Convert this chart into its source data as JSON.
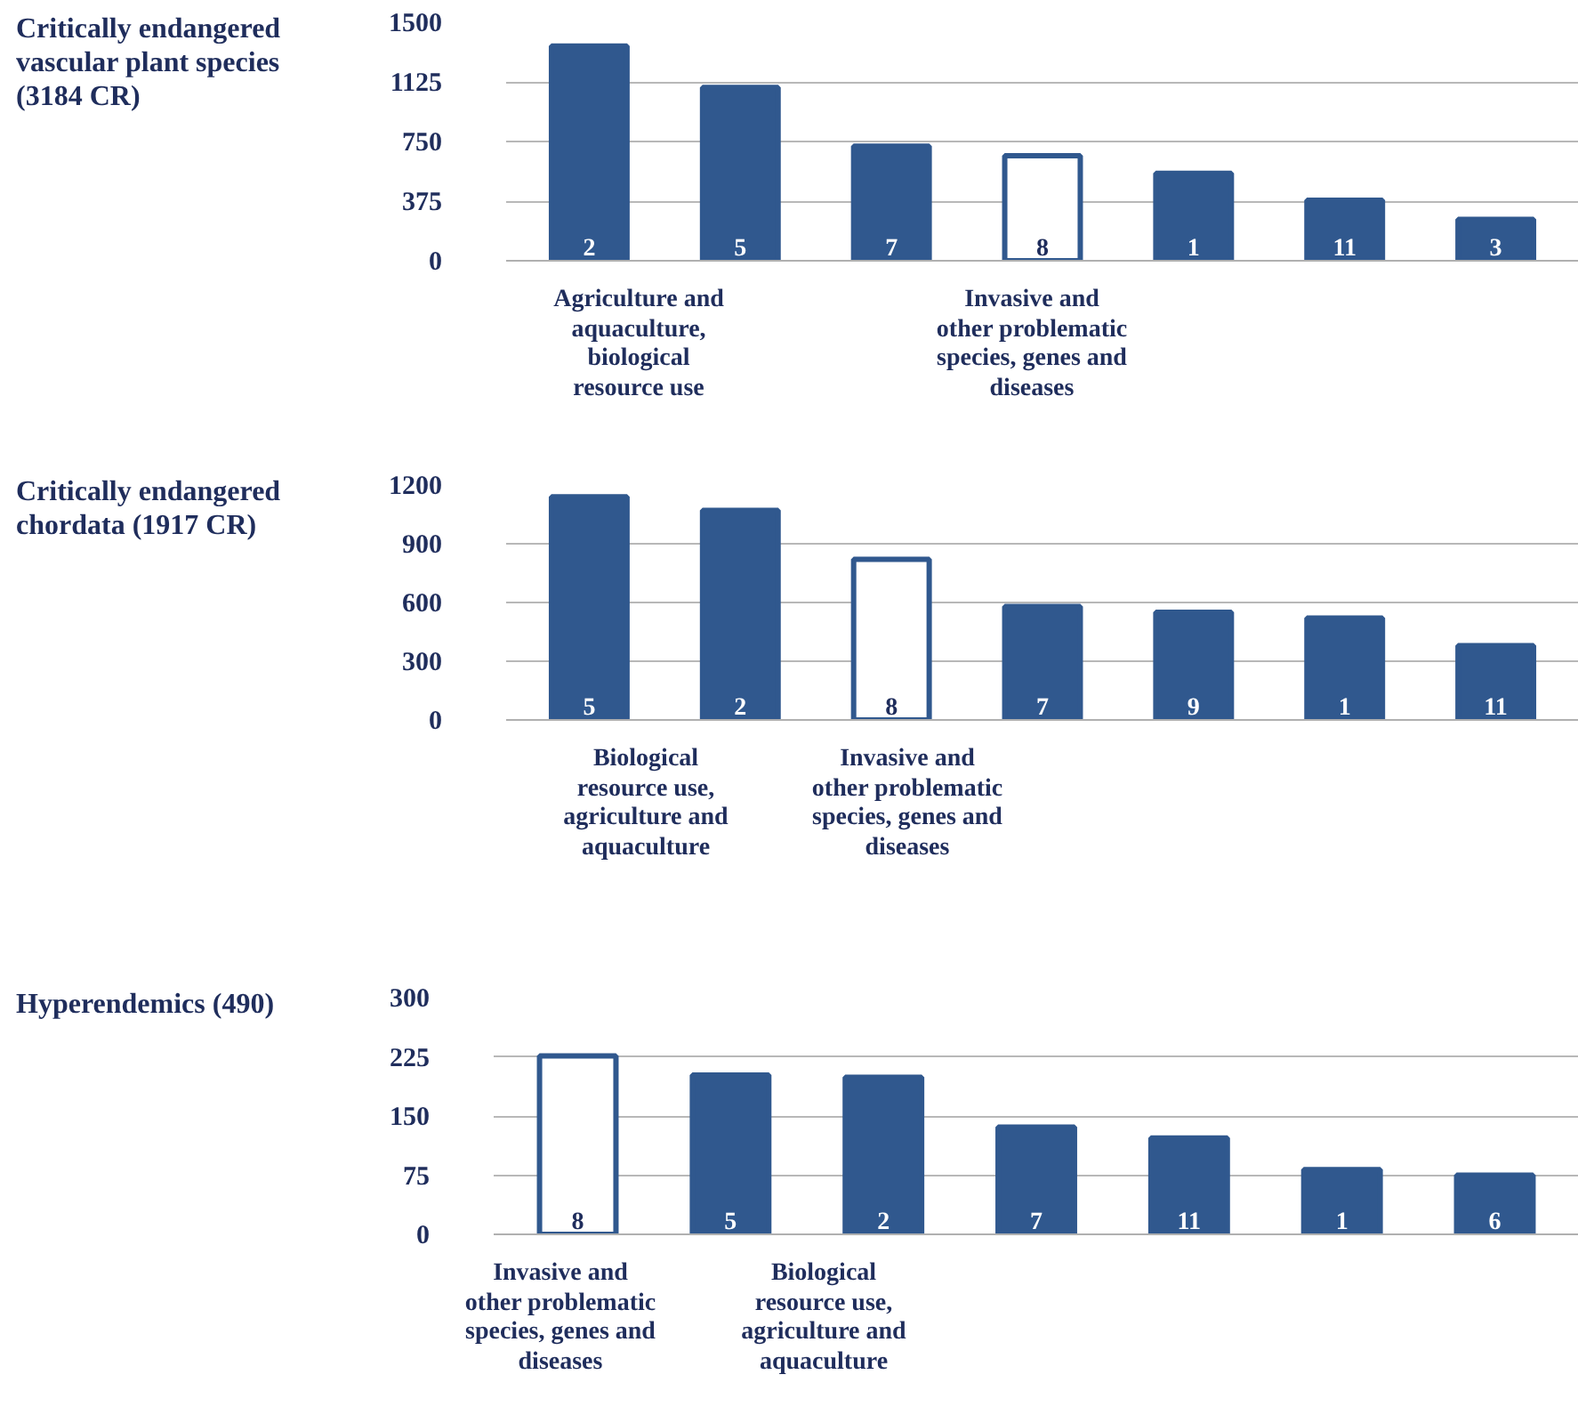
{
  "chart_data": [
    {
      "type": "bar",
      "title": "Critically endangered\nvascular plant species\n(3184 CR)",
      "categories": [
        "2",
        "5",
        "7",
        "8",
        "1",
        "11",
        "3"
      ],
      "values": [
        1350,
        1090,
        720,
        660,
        550,
        380,
        260
      ],
      "color": "#30588e",
      "colors": [
        "#30588e",
        "#30588e",
        "#30588e",
        "#ffffff",
        "#30588e",
        "#30588e",
        "#30588e"
      ],
      "ylim": [
        0,
        1500
      ],
      "yticks": [
        0,
        375,
        750,
        1125,
        1500
      ],
      "grid": "y",
      "annotations": [
        "Agriculture and\naquaculture,\nbiological\nresource use",
        "Invasive and\nother problematic\nspecies, genes and\ndiseases"
      ]
    },
    {
      "type": "bar",
      "title": "Critically endangered\nchordata (1917 CR)",
      "categories": [
        "5",
        "2",
        "8",
        "7",
        "9",
        "1",
        "11"
      ],
      "values": [
        1140,
        1070,
        820,
        580,
        550,
        520,
        380
      ],
      "color": "#30588e",
      "colors": [
        "#30588e",
        "#30588e",
        "#ffffff",
        "#30588e",
        "#30588e",
        "#30588e",
        "#30588e"
      ],
      "ylim": [
        0,
        1200
      ],
      "yticks": [
        0,
        300,
        600,
        900,
        1200
      ],
      "grid": "y",
      "annotations": [
        "Biological\nresource use,\nagriculture and\naquaculture",
        "Invasive and\nother problematic\nspecies, genes and\ndiseases"
      ]
    },
    {
      "type": "bar",
      "title": "Hyperendemics (490)",
      "categories": [
        "8",
        "5",
        "2",
        "7",
        "11",
        "1",
        "6"
      ],
      "values": [
        226,
        202,
        199,
        136,
        122,
        82,
        75
      ],
      "color": "#30588e",
      "colors": [
        "#ffffff",
        "#30588e",
        "#30588e",
        "#30588e",
        "#30588e",
        "#30588e",
        "#30588e"
      ],
      "ylim": [
        0,
        300
      ],
      "yticks": [
        0,
        75,
        150,
        225,
        300
      ],
      "grid": "y",
      "annotations": [
        "Invasive and\nother problematic\nspecies, genes and\ndiseases",
        "Biological\nresource use,\nagriculture and\naquaculture"
      ]
    }
  ]
}
